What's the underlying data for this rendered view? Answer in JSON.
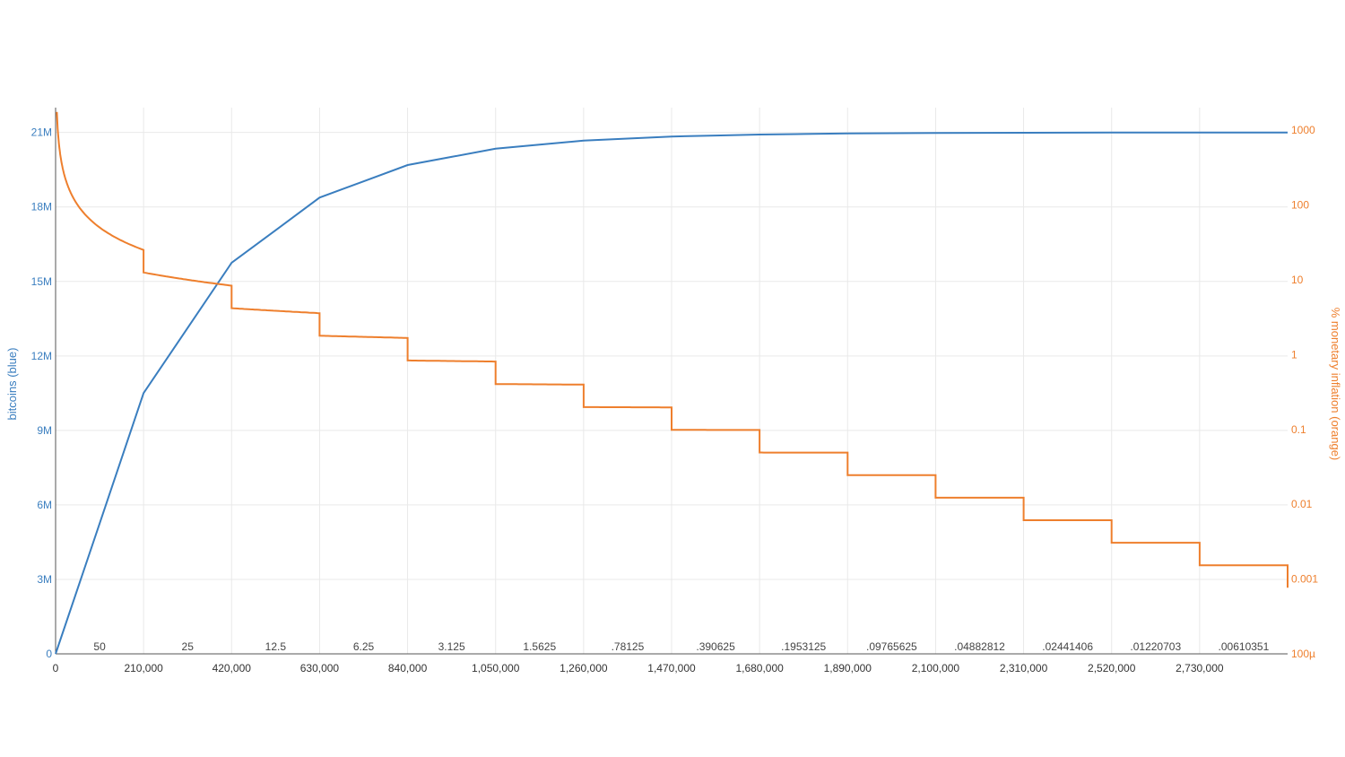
{
  "chart_data": {
    "type": "line",
    "title": "",
    "xlabel": "",
    "ylabel_left": "bitcoins (blue)",
    "ylabel_right": "% monetary inflation (orange)",
    "xlim": [
      0,
      2940000
    ],
    "ylim_left": [
      0,
      22000000
    ],
    "ylim_right_log": [
      0.0001,
      2000
    ],
    "y_right_scale": "log",
    "grid": true,
    "colors": {
      "supply": "#3a7ebf",
      "inflation": "#ee7f2d",
      "axis": "#555555"
    },
    "x_ticks": [
      {
        "value": 0,
        "label": "0"
      },
      {
        "value": 210000,
        "label": "210,000"
      },
      {
        "value": 420000,
        "label": "420,000"
      },
      {
        "value": 630000,
        "label": "630,000"
      },
      {
        "value": 840000,
        "label": "840,000"
      },
      {
        "value": 1050000,
        "label": "1,050,000"
      },
      {
        "value": 1260000,
        "label": "1,260,000"
      },
      {
        "value": 1470000,
        "label": "1,470,000"
      },
      {
        "value": 1680000,
        "label": "1,680,000"
      },
      {
        "value": 1890000,
        "label": "1,890,000"
      },
      {
        "value": 2100000,
        "label": "2,100,000"
      },
      {
        "value": 2310000,
        "label": "2,310,000"
      },
      {
        "value": 2520000,
        "label": "2,520,000"
      },
      {
        "value": 2730000,
        "label": "2,730,000"
      }
    ],
    "y_left_ticks": [
      {
        "value": 0,
        "label": "0"
      },
      {
        "value": 3000000,
        "label": "3M"
      },
      {
        "value": 6000000,
        "label": "6M"
      },
      {
        "value": 9000000,
        "label": "9M"
      },
      {
        "value": 12000000,
        "label": "12M"
      },
      {
        "value": 15000000,
        "label": "15M"
      },
      {
        "value": 18000000,
        "label": "18M"
      },
      {
        "value": 21000000,
        "label": "21M"
      }
    ],
    "y_right_ticks": [
      {
        "value": 1000,
        "label": "1000"
      },
      {
        "value": 100,
        "label": "100"
      },
      {
        "value": 10,
        "label": "10"
      },
      {
        "value": 1,
        "label": "1"
      },
      {
        "value": 0.1,
        "label": "0.1"
      },
      {
        "value": 0.01,
        "label": "0.01"
      },
      {
        "value": 0.001,
        "label": "0.001"
      },
      {
        "value": 0.0001,
        "label": "100µ"
      }
    ],
    "reward_labels": [
      {
        "x": 105000,
        "label": "50"
      },
      {
        "x": 315000,
        "label": "25"
      },
      {
        "x": 525000,
        "label": "12.5"
      },
      {
        "x": 735000,
        "label": "6.25"
      },
      {
        "x": 945000,
        "label": "3.125"
      },
      {
        "x": 1155000,
        "label": "1.5625"
      },
      {
        "x": 1365000,
        "label": ".78125"
      },
      {
        "x": 1575000,
        "label": ".390625"
      },
      {
        "x": 1785000,
        "label": ".1953125"
      },
      {
        "x": 1995000,
        "label": ".09765625"
      },
      {
        "x": 2205000,
        "label": ".04882812"
      },
      {
        "x": 2415000,
        "label": ".02441406"
      },
      {
        "x": 2625000,
        "label": ".01220703"
      },
      {
        "x": 2835000,
        "label": ".00610351"
      }
    ],
    "series": [
      {
        "name": "bitcoins (blue)",
        "axis": "left",
        "x": [
          0,
          210000,
          420000,
          630000,
          840000,
          1050000,
          1260000,
          1470000,
          1680000,
          1890000,
          2100000,
          2310000,
          2520000,
          2730000,
          2940000
        ],
        "values": [
          0,
          10500000,
          15750000,
          18375000,
          19687500,
          20343750,
          20671875,
          20835938,
          20917969,
          20958984,
          20979492,
          20989746,
          20994873,
          20997437,
          20998718
        ]
      },
      {
        "name": "% monetary inflation (orange)",
        "axis": "right",
        "step_blocks": 210000,
        "x_start": 3000,
        "x_end": 2940000,
        "reward_halving_factor": 0.5,
        "initial_reward": 50
      }
    ]
  }
}
